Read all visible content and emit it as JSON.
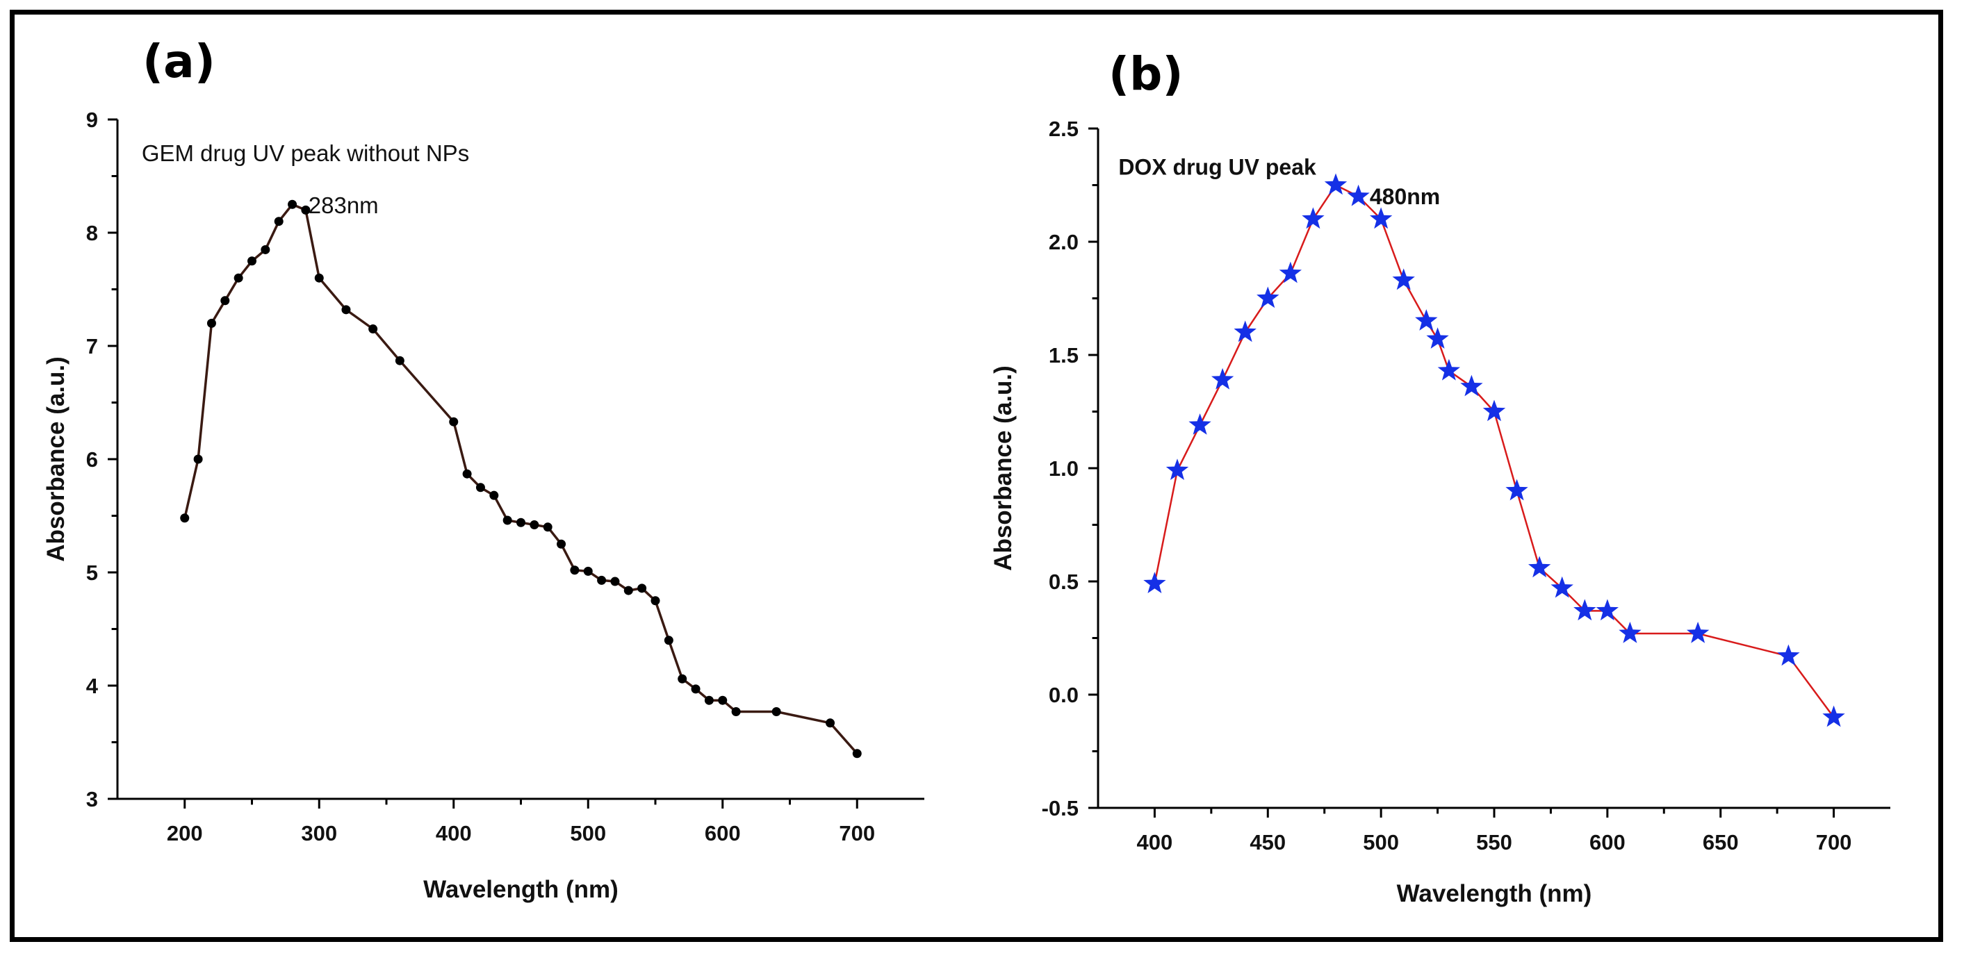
{
  "panels": {
    "a": {
      "label": "(a)"
    },
    "b": {
      "label": "(b)"
    }
  },
  "chart_data": [
    {
      "id": "a",
      "type": "line",
      "title": "",
      "xlabel": "Wavelength (nm)",
      "ylabel": "Absorbance (a.u.)",
      "xlim": [
        150,
        750
      ],
      "ylim": [
        3,
        9
      ],
      "xticks": [
        200,
        300,
        400,
        500,
        600,
        700
      ],
      "yticks": [
        3,
        4,
        5,
        6,
        7,
        8,
        9
      ],
      "x_tick_labels": [
        "200",
        "300",
        "400",
        "500",
        "600",
        "700"
      ],
      "y_tick_labels": [
        "3",
        "4",
        "5",
        "6",
        "7",
        "8",
        "9"
      ],
      "marker": "circle",
      "line_color": "#3a1a12",
      "marker_color": "#000000",
      "annotations": [
        {
          "text": "GEM drug UV peak without NPs",
          "x": 168,
          "y": 8.7
        },
        {
          "text": "283nm",
          "x": 292,
          "y": 8.24
        }
      ],
      "series": [
        {
          "name": "GEM",
          "x": [
            200,
            210,
            220,
            230,
            240,
            250,
            260,
            270,
            280,
            290,
            300,
            320,
            340,
            360,
            400,
            410,
            420,
            430,
            440,
            450,
            460,
            470,
            480,
            490,
            500,
            510,
            520,
            530,
            540,
            550,
            560,
            570,
            580,
            590,
            600,
            610,
            640,
            680,
            700
          ],
          "y": [
            5.48,
            6.0,
            7.2,
            7.4,
            7.6,
            7.75,
            7.85,
            8.1,
            8.25,
            8.2,
            7.6,
            7.32,
            7.15,
            6.87,
            6.33,
            5.87,
            5.75,
            5.68,
            5.46,
            5.44,
            5.42,
            5.4,
            5.25,
            5.02,
            5.01,
            4.93,
            4.92,
            4.84,
            4.86,
            4.75,
            4.4,
            4.06,
            3.97,
            3.87,
            3.87,
            3.77,
            3.77,
            3.67,
            3.4
          ]
        }
      ]
    },
    {
      "id": "b",
      "type": "line",
      "title": "",
      "xlabel": "Wavelength (nm)",
      "ylabel": "Absorbance (a.u.)",
      "xlim": [
        375,
        725
      ],
      "ylim": [
        -0.5,
        2.5
      ],
      "xticks": [
        400,
        450,
        500,
        550,
        600,
        650,
        700
      ],
      "yticks": [
        -0.5,
        0.0,
        0.5,
        1.0,
        1.5,
        2.0,
        2.5
      ],
      "x_tick_labels": [
        "400",
        "450",
        "500",
        "550",
        "600",
        "650",
        "700"
      ],
      "y_tick_labels": [
        "-0.5",
        "0.0",
        "0.5",
        "1.0",
        "1.5",
        "2.0",
        "2.5"
      ],
      "marker": "star",
      "line_color": "#d81b1b",
      "marker_color": "#1530e6",
      "annotations": [
        {
          "text": "DOX drug UV peak",
          "x": 384,
          "y": 2.33
        },
        {
          "text": "480nm",
          "x": 495,
          "y": 2.2
        }
      ],
      "series": [
        {
          "name": "DOX",
          "x": [
            400,
            410,
            420,
            430,
            440,
            450,
            460,
            470,
            480,
            490,
            500,
            510,
            520,
            525,
            530,
            540,
            550,
            560,
            570,
            580,
            590,
            600,
            610,
            640,
            680,
            700
          ],
          "y": [
            0.49,
            0.99,
            1.19,
            1.39,
            1.6,
            1.75,
            1.86,
            2.1,
            2.25,
            2.2,
            2.1,
            1.83,
            1.65,
            1.57,
            1.43,
            1.36,
            1.25,
            0.9,
            0.56,
            0.47,
            0.37,
            0.37,
            0.27,
            0.27,
            0.17,
            -0.1
          ]
        }
      ]
    }
  ]
}
